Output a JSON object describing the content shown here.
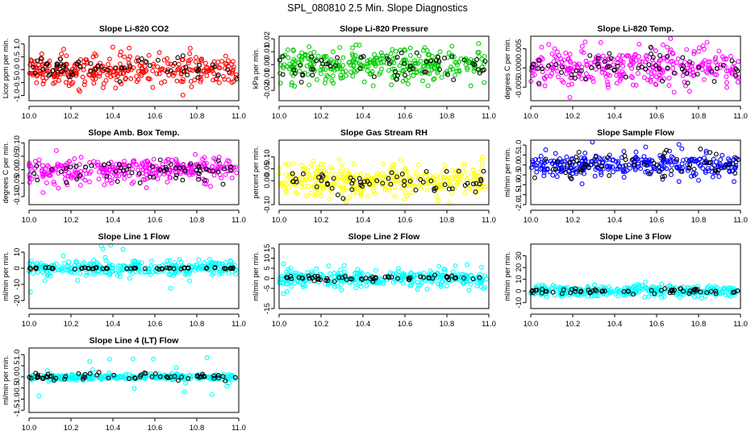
{
  "figure": {
    "title": "SPL_080810  2.5 Min. Slope Diagnostics"
  },
  "chart_data": [
    {
      "type": "scatter",
      "title": "Slope Li-820 CO2",
      "ylabel": "Licor ppm per min.",
      "xlim": [
        10.0,
        11.0
      ],
      "ylim": [
        -1.2,
        1.3
      ],
      "xticks": [
        "10.0",
        "10.2",
        "10.4",
        "10.6",
        "10.8",
        "11.0"
      ],
      "yticks": [
        "-1.0",
        "-0.5",
        "0.0",
        "0.5",
        "1.0"
      ],
      "series": [
        {
          "name": "points",
          "color": "#ff0000",
          "spread": 0.28,
          "outliers": 0.9
        },
        {
          "name": "overlay",
          "color": "#000000",
          "spread": 0.22,
          "outliers": 0.5
        }
      ]
    },
    {
      "type": "scatter",
      "title": "Slope Li-820 Pressure",
      "ylabel": "kPa per min.",
      "xlim": [
        10.0,
        11.0
      ],
      "ylim": [
        -0.028,
        0.022
      ],
      "xticks": [
        "10.0",
        "10.2",
        "10.4",
        "10.6",
        "10.8",
        "11.0"
      ],
      "yticks": [
        "-0.02",
        "-0.01",
        "0.00",
        "0.01",
        "0.02"
      ],
      "series": [
        {
          "name": "points",
          "color": "#00cc00",
          "spread": 0.006,
          "outliers": 0.017
        },
        {
          "name": "overlay",
          "color": "#000000",
          "spread": 0.006,
          "outliers": 0.012
        }
      ]
    },
    {
      "type": "scatter",
      "title": "Slope Li-820 Temp.",
      "ylabel": "degrees C per min.",
      "xlim": [
        10.0,
        11.0
      ],
      "ylim": [
        -0.0085,
        0.0082
      ],
      "xticks": [
        "10.0",
        "10.2",
        "10.4",
        "10.6",
        "10.8",
        "11.0"
      ],
      "yticks": [
        "-0.005",
        "0.000",
        "0.005"
      ],
      "series": [
        {
          "name": "points",
          "color": "#ff00ff",
          "spread": 0.0025,
          "outliers": 0.007
        },
        {
          "name": "overlay",
          "color": "#000000",
          "spread": 0.002,
          "outliers": 0.004
        }
      ]
    },
    {
      "type": "scatter",
      "title": "Slope Amb. Box Temp.",
      "ylabel": "degrees C per min.",
      "xlim": [
        10.0,
        11.0
      ],
      "ylim": [
        -0.13,
        0.11
      ],
      "xticks": [
        "10.0",
        "10.2",
        "10.4",
        "10.6",
        "10.8",
        "11.0"
      ],
      "yticks": [
        "-0.10",
        "-0.05",
        "0.00",
        "0.05",
        "0.10"
      ],
      "series": [
        {
          "name": "points",
          "color": "#ff00ff",
          "spread": 0.022,
          "outliers": 0.09
        },
        {
          "name": "overlay",
          "color": "#000000",
          "spread": 0.02,
          "outliers": 0.05
        }
      ]
    },
    {
      "type": "scatter",
      "title": "Slope Gas Stream RH",
      "ylabel": "percent per min.",
      "xlim": [
        10.0,
        11.0
      ],
      "ylim": [
        -0.1,
        0.17
      ],
      "xticks": [
        "10.0",
        "10.2",
        "10.4",
        "10.6",
        "10.8",
        "11.0"
      ],
      "yticks": [
        "-0.10",
        "0.00",
        "0.05",
        "0.10"
      ],
      "series": [
        {
          "name": "points",
          "color": "#ffff00",
          "spread": 0.035,
          "outliers": 0.1
        },
        {
          "name": "overlay",
          "color": "#000000",
          "spread": 0.025,
          "outliers": 0.06
        }
      ]
    },
    {
      "type": "scatter",
      "title": "Slope Sample Flow",
      "ylabel": "ml/min per min.",
      "xlim": [
        10.0,
        11.0
      ],
      "ylim": [
        -2.0,
        1.25
      ],
      "xticks": [
        "10.0",
        "10.2",
        "10.4",
        "10.6",
        "10.8",
        "11.0"
      ],
      "yticks": [
        "-2.0",
        "-1.5",
        "-1.0",
        "-0.5",
        "0.0",
        "0.5",
        "1.0"
      ],
      "series": [
        {
          "name": "points",
          "color": "#0000ff",
          "spread": 0.25,
          "outliers": 1.2
        },
        {
          "name": "overlay",
          "color": "#000000",
          "spread": 0.3,
          "outliers": 0.9
        }
      ]
    },
    {
      "type": "scatter",
      "title": "Slope Line 1 Flow",
      "ylabel": "ml/min per min.",
      "xlim": [
        10.0,
        11.0
      ],
      "ylim": [
        -25,
        15
      ],
      "xticks": [
        "10.0",
        "10.2",
        "10.4",
        "10.6",
        "10.8",
        "11.0"
      ],
      "yticks": [
        "-20",
        "-10",
        "0",
        "10"
      ],
      "series": [
        {
          "name": "points",
          "color": "#00ffff",
          "spread": 2.5,
          "outliers": 16
        },
        {
          "name": "overlay",
          "color": "#000000",
          "spread": 0.3,
          "outliers": 0.5
        }
      ]
    },
    {
      "type": "scatter",
      "title": "Slope Line 2 Flow",
      "ylabel": "ml/min per min.",
      "xlim": [
        10.0,
        11.0
      ],
      "ylim": [
        -15,
        17
      ],
      "xticks": [
        "10.0",
        "10.2",
        "10.4",
        "10.6",
        "10.8",
        "11.0"
      ],
      "yticks": [
        "-15",
        "-5",
        "0",
        "5",
        "10",
        "15"
      ],
      "series": [
        {
          "name": "points",
          "color": "#00ffff",
          "spread": 2.2,
          "outliers": 9
        },
        {
          "name": "overlay",
          "color": "#000000",
          "spread": 0.6,
          "outliers": 2
        }
      ]
    },
    {
      "type": "scatter",
      "title": "Slope Line 3 Flow",
      "ylabel": "ml/min per min.",
      "xlim": [
        10.0,
        11.0
      ],
      "ylim": [
        -15,
        40
      ],
      "xticks": [
        "10.0",
        "10.2",
        "10.4",
        "10.6",
        "10.8",
        "11.0"
      ],
      "yticks": [
        "-10",
        "0",
        "10",
        "20",
        "30"
      ],
      "series": [
        {
          "name": "points",
          "color": "#00ffff",
          "spread": 2.5,
          "outliers": 8
        },
        {
          "name": "overlay",
          "color": "#000000",
          "spread": 1.0,
          "outliers": 3
        }
      ]
    },
    {
      "type": "scatter",
      "title": "Slope Line 4 (LT) Flow",
      "ylabel": "ml/min per min.",
      "xlim": [
        10.0,
        11.0
      ],
      "ylim": [
        -1.6,
        1.3
      ],
      "xticks": [
        "10.0",
        "10.2",
        "10.4",
        "10.6",
        "10.8",
        "11.0"
      ],
      "yticks": [
        "-1.5",
        "-1.0",
        "-0.5",
        "0.0",
        "0.5",
        "1.0"
      ],
      "series": [
        {
          "name": "points",
          "color": "#00ffff",
          "spread": 0.06,
          "outliers": 0.9
        },
        {
          "name": "overlay",
          "color": "#000000",
          "spread": 0.07,
          "outliers": 0.15
        }
      ]
    }
  ]
}
